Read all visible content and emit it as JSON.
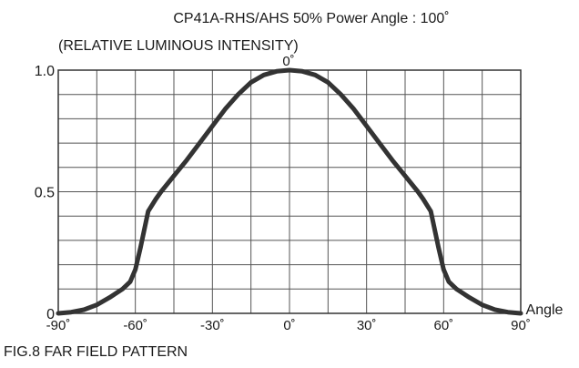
{
  "chart_data": {
    "type": "line",
    "title": "CP41A-RHS/AHS    50% Power Angle : 100˚",
    "subtitle": "(RELATIVE LUMINOUS INTENSITY)",
    "xlabel": "Angle",
    "ylabel": "",
    "caption": "FIG.8  FAR FIELD PATTERN",
    "xlim": [
      -90,
      90
    ],
    "ylim": [
      0,
      1.0
    ],
    "x_ticks": [
      -90,
      -60,
      -30,
      0,
      30,
      60,
      90
    ],
    "x_tick_labels": [
      "-90˚",
      "-60˚",
      "-30˚",
      "0˚",
      "30˚",
      "60˚",
      "90˚"
    ],
    "y_ticks": [
      0,
      0.5,
      1.0
    ],
    "y_tick_labels": [
      "0",
      "0.5",
      "1.0"
    ],
    "top_center_label": "0˚",
    "grid": true,
    "line_color": "#333333",
    "series": [
      {
        "x": [
          -90,
          -85,
          -80,
          -75,
          -70,
          -65,
          -62,
          -60,
          -58,
          -55,
          -52,
          -50,
          -45,
          -40,
          -35,
          -30,
          -25,
          -20,
          -15,
          -10,
          -5,
          0,
          5,
          10,
          15,
          20,
          25,
          30,
          35,
          40,
          45,
          50,
          52,
          55,
          58,
          60,
          62,
          65,
          70,
          75,
          80,
          85,
          90
        ],
        "y": [
          0.0,
          0.005,
          0.015,
          0.035,
          0.065,
          0.1,
          0.13,
          0.18,
          0.27,
          0.42,
          0.47,
          0.5,
          0.565,
          0.63,
          0.7,
          0.77,
          0.84,
          0.9,
          0.95,
          0.98,
          0.995,
          1.0,
          0.995,
          0.98,
          0.95,
          0.9,
          0.84,
          0.77,
          0.7,
          0.63,
          0.565,
          0.5,
          0.47,
          0.42,
          0.27,
          0.18,
          0.13,
          0.1,
          0.065,
          0.035,
          0.015,
          0.005,
          0.0
        ]
      }
    ]
  }
}
